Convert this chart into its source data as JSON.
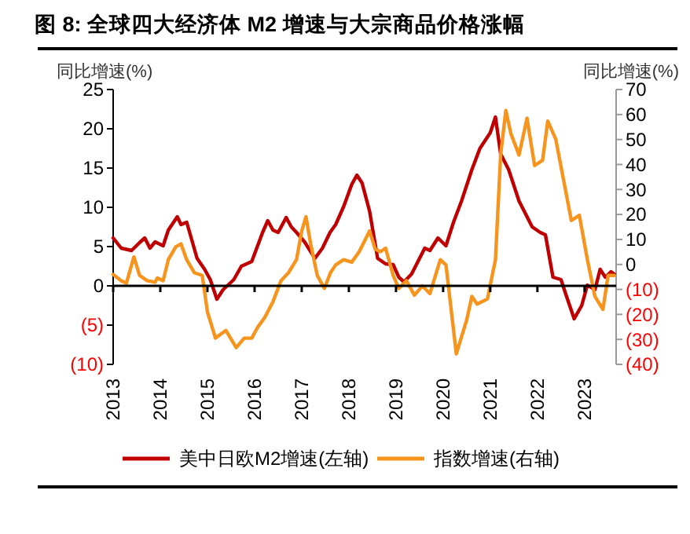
{
  "chart_data": {
    "type": "line",
    "title": "图 8: 全球四大经济体 M2 增速与大宗商品价格涨幅",
    "ylabel": "同比增速(%)",
    "y2label": "同比增速(%)",
    "xlim": [
      2013,
      2023.67
    ],
    "xticks": [
      2013,
      2014,
      2015,
      2016,
      2017,
      2018,
      2019,
      2020,
      2021,
      2022,
      2023
    ],
    "ylim": [
      -10,
      25
    ],
    "yticks": [
      {
        "value": -10,
        "label": "(10)"
      },
      {
        "value": -5,
        "label": "(5)"
      },
      0,
      5,
      10,
      15,
      20,
      25
    ],
    "y2lim": [
      -40,
      70
    ],
    "y2ticks": [
      {
        "value": -40,
        "label": "(40)"
      },
      {
        "value": -30,
        "label": "(30)"
      },
      {
        "value": -20,
        "label": "(20)"
      },
      {
        "value": -10,
        "label": "(10)"
      },
      0,
      10,
      20,
      30,
      40,
      50,
      60,
      70
    ],
    "legend": "bottom",
    "ref_lines": [
      {
        "axis": "y",
        "value": 0,
        "color": "#000000"
      }
    ],
    "line_style": "solid",
    "marker": "none",
    "series": [
      {
        "name": "美中日欧M2增速(左轴)",
        "color": "#c00000",
        "axis": "y",
        "x": [
          2013.0,
          2013.17,
          2013.39,
          2013.56,
          2013.67,
          2013.78,
          2013.89,
          2014.06,
          2014.17,
          2014.36,
          2014.44,
          2014.56,
          2014.78,
          2014.94,
          2015.06,
          2015.2,
          2015.33,
          2015.56,
          2015.72,
          2015.94,
          2016.17,
          2016.28,
          2016.39,
          2016.5,
          2016.67,
          2016.78,
          2016.89,
          2017.06,
          2017.28,
          2017.44,
          2017.6,
          2017.72,
          2017.89,
          2018.06,
          2018.17,
          2018.28,
          2018.44,
          2018.61,
          2018.78,
          2018.94,
          2019.06,
          2019.17,
          2019.33,
          2019.61,
          2019.72,
          2019.89,
          2020.06,
          2020.22,
          2020.39,
          2020.61,
          2020.78,
          2021.0,
          2021.11,
          2021.22,
          2021.39,
          2021.61,
          2021.89,
          2022.06,
          2022.17,
          2022.33,
          2022.5,
          2022.61,
          2022.78,
          2022.94,
          2023.06,
          2023.22,
          2023.33,
          2023.44,
          2023.56,
          2023.63
        ],
        "values": [
          6.1,
          4.8,
          4.5,
          5.5,
          6.1,
          4.8,
          5.6,
          5.1,
          7.1,
          8.8,
          7.8,
          8.1,
          3.5,
          2.1,
          0.8,
          -1.7,
          -0.5,
          0.8,
          2.5,
          3.1,
          6.8,
          8.3,
          7.1,
          6.8,
          8.7,
          7.5,
          6.8,
          5.6,
          3.5,
          4.8,
          6.8,
          7.8,
          10.1,
          12.9,
          14.1,
          13.1,
          9.5,
          3.5,
          2.8,
          2.7,
          1.1,
          0.5,
          1.5,
          4.8,
          4.5,
          6.1,
          5.1,
          8.1,
          10.8,
          14.8,
          17.5,
          19.5,
          21.5,
          16.8,
          14.8,
          10.8,
          7.5,
          6.8,
          6.5,
          1.1,
          0.8,
          -1.2,
          -4.2,
          -2.5,
          0.1,
          -0.5,
          2.1,
          1.1,
          1.8,
          1.5
        ]
      },
      {
        "name": "指数增速(右轴)",
        "color": "#f7941d",
        "axis": "y2",
        "x": [
          2013.0,
          2013.17,
          2013.28,
          2013.44,
          2013.56,
          2013.72,
          2013.89,
          2013.94,
          2014.06,
          2014.17,
          2014.33,
          2014.44,
          2014.56,
          2014.72,
          2014.89,
          2015.0,
          2015.17,
          2015.39,
          2015.61,
          2015.78,
          2015.94,
          2016.06,
          2016.22,
          2016.39,
          2016.56,
          2016.72,
          2016.89,
          2017.0,
          2017.09,
          2017.19,
          2017.33,
          2017.48,
          2017.61,
          2017.72,
          2017.89,
          2018.06,
          2018.22,
          2018.44,
          2018.56,
          2018.67,
          2018.78,
          2018.94,
          2019.06,
          2019.22,
          2019.39,
          2019.56,
          2019.72,
          2019.94,
          2020.06,
          2020.28,
          2020.5,
          2020.61,
          2020.72,
          2020.94,
          2021.11,
          2021.22,
          2021.33,
          2021.44,
          2021.61,
          2021.78,
          2021.94,
          2022.11,
          2022.22,
          2022.39,
          2022.56,
          2022.72,
          2022.89,
          2023.06,
          2023.22,
          2023.39,
          2023.5,
          2023.63
        ],
        "values": [
          -4,
          -6.5,
          -7.5,
          3,
          -4.4,
          -6.5,
          -7.1,
          -5.4,
          -6.5,
          1.9,
          7.1,
          8.2,
          1.9,
          -3.3,
          -4.4,
          -19,
          -29.5,
          -26.4,
          -33.3,
          -29.5,
          -29.5,
          -25.3,
          -21.1,
          -14.9,
          -6.5,
          -3.3,
          1.9,
          13.4,
          19.1,
          8.2,
          -4.4,
          -9.6,
          -3.3,
          -0.2,
          1.9,
          0.9,
          5.1,
          13.4,
          6.1,
          5.1,
          6.5,
          -4.4,
          -9.6,
          -6.5,
          -12.3,
          -8.6,
          -11.7,
          1.9,
          -0.2,
          -35.8,
          -22.2,
          -12.8,
          -15.9,
          -13.8,
          1.9,
          43.8,
          61.6,
          52.2,
          43.8,
          58.5,
          39.6,
          41.7,
          57.4,
          50.1,
          33.3,
          17.6,
          19.7,
          1.9,
          -12.8,
          -18,
          -4.4,
          -4.4
        ]
      }
    ]
  }
}
